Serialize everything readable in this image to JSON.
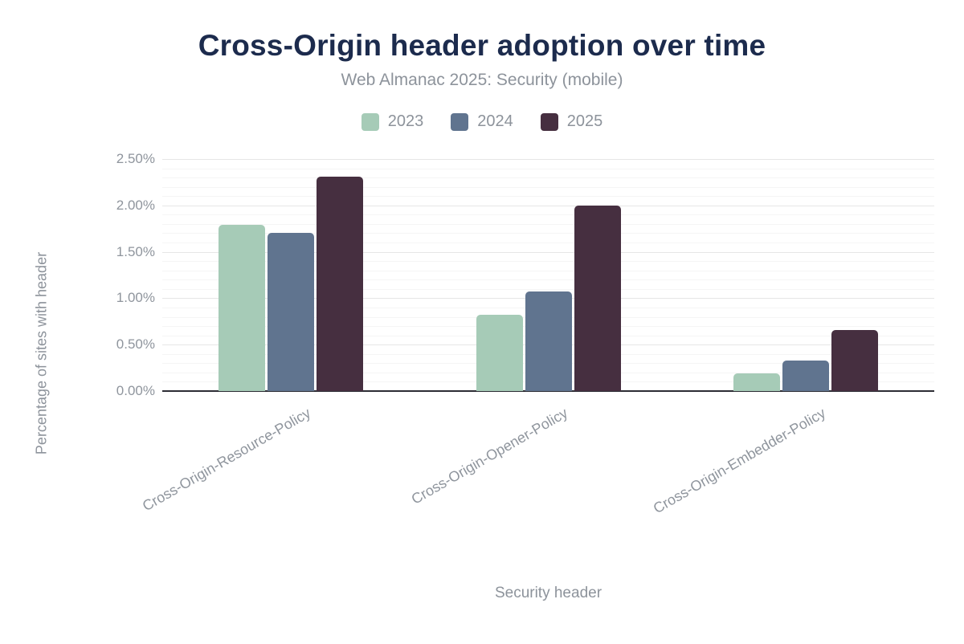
{
  "chart_data": {
    "type": "bar",
    "title": "Cross-Origin header adoption over time",
    "subtitle": "Web Almanac 2025: Security (mobile)",
    "xlabel": "Security header",
    "ylabel": "Percentage of sites with header",
    "categories": [
      "Cross-Origin-Resource-Policy",
      "Cross-Origin-Opener-Policy",
      "Cross-Origin-Embedder-Policy"
    ],
    "series": [
      {
        "name": "2023",
        "color": "#a6cbb7",
        "values": [
          1.79,
          0.82,
          0.19
        ]
      },
      {
        "name": "2024",
        "color": "#60748f",
        "values": [
          1.7,
          1.07,
          0.33
        ]
      },
      {
        "name": "2025",
        "color": "#462f40",
        "values": [
          2.31,
          2.0,
          0.66
        ]
      }
    ],
    "ylim": [
      0,
      2.5
    ],
    "ytick_values": [
      0,
      0.5,
      1.0,
      1.5,
      2.0,
      2.5
    ],
    "ytick_labels": [
      "0.00%",
      "0.50%",
      "1.00%",
      "1.50%",
      "2.00%",
      "2.50%"
    ],
    "minor_tick_step": 0.1,
    "major_tick_step": 0.5,
    "grid": true,
    "legend_position": "top",
    "colors": {
      "title": "#1c2b4d",
      "subtitle": "#8d939b",
      "axis_label": "#8f959d",
      "axis_line": "#2d2d35",
      "grid_major": "#e6e6e6",
      "grid_minor": "#f5f5f5"
    }
  }
}
